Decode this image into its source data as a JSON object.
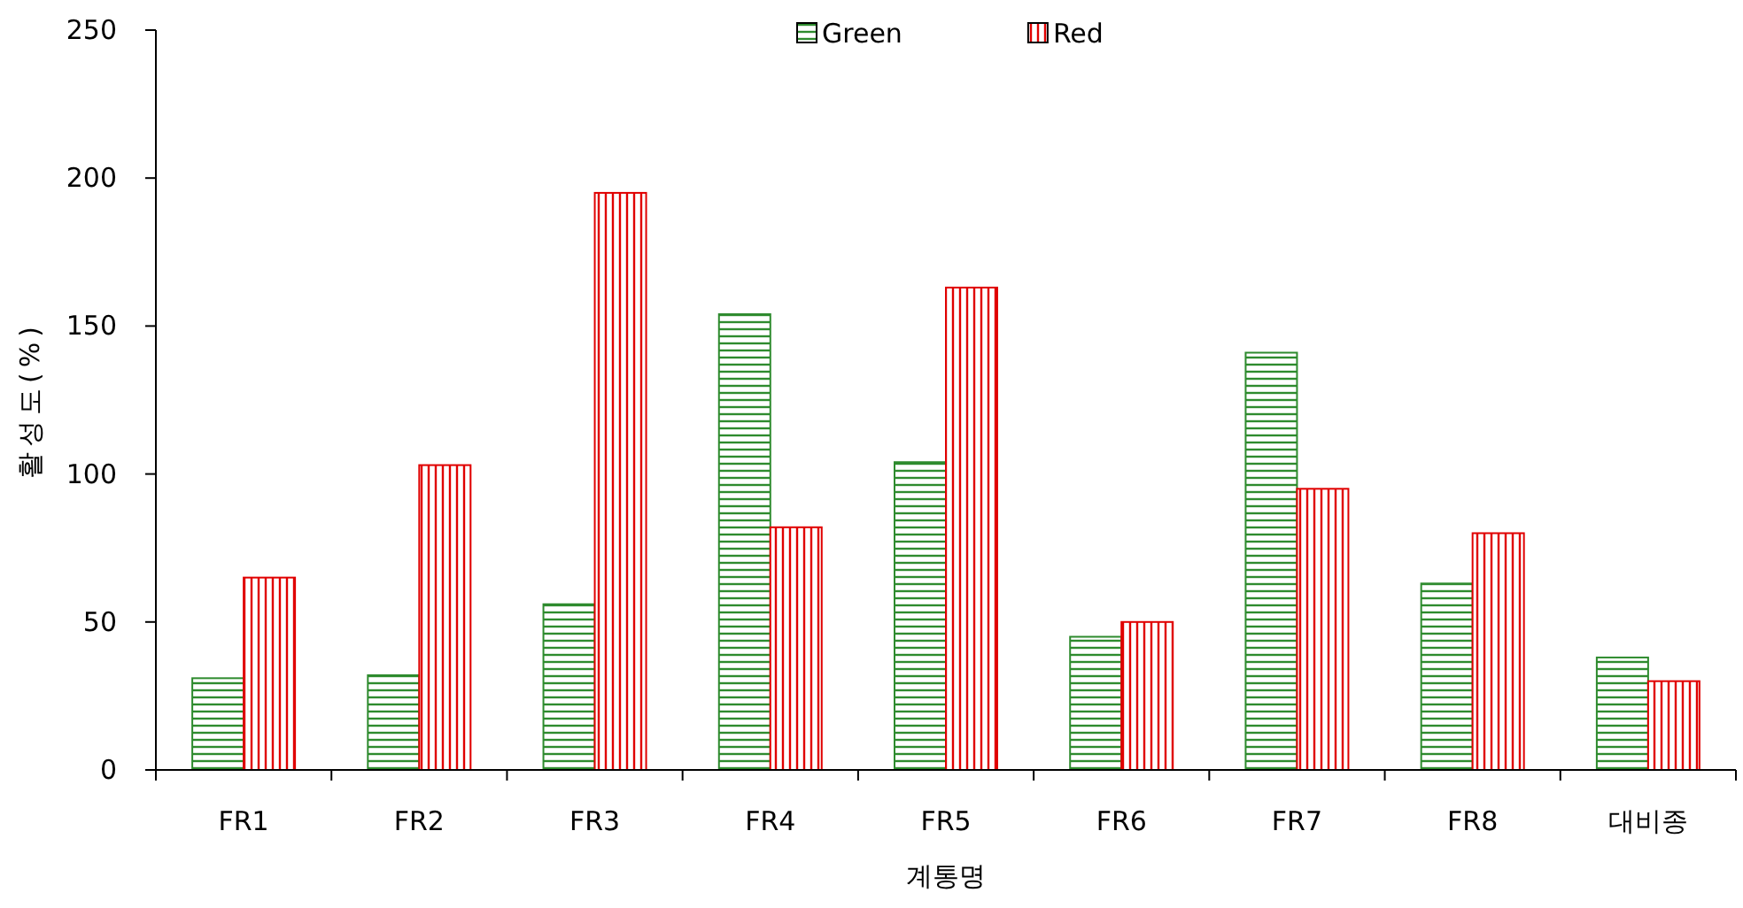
{
  "chart_data": {
    "type": "bar",
    "xlabel": "계통명",
    "ylabel": "활성도(%)",
    "categories": [
      "FR1",
      "FR2",
      "FR3",
      "FR4",
      "FR5",
      "FR6",
      "FR7",
      "FR8",
      "대비종"
    ],
    "series": [
      {
        "name": "Green",
        "color": "#2e8b2e",
        "values": [
          31,
          32,
          56,
          154,
          104,
          45,
          141,
          63,
          38
        ]
      },
      {
        "name": "Red",
        "color": "#e00000",
        "values": [
          65,
          103,
          195,
          82,
          163,
          50,
          95,
          80,
          30
        ]
      }
    ],
    "ylim": [
      0,
      250
    ],
    "yticks": [
      0,
      50,
      100,
      150,
      200,
      250
    ],
    "grid": false,
    "legend": "top"
  }
}
